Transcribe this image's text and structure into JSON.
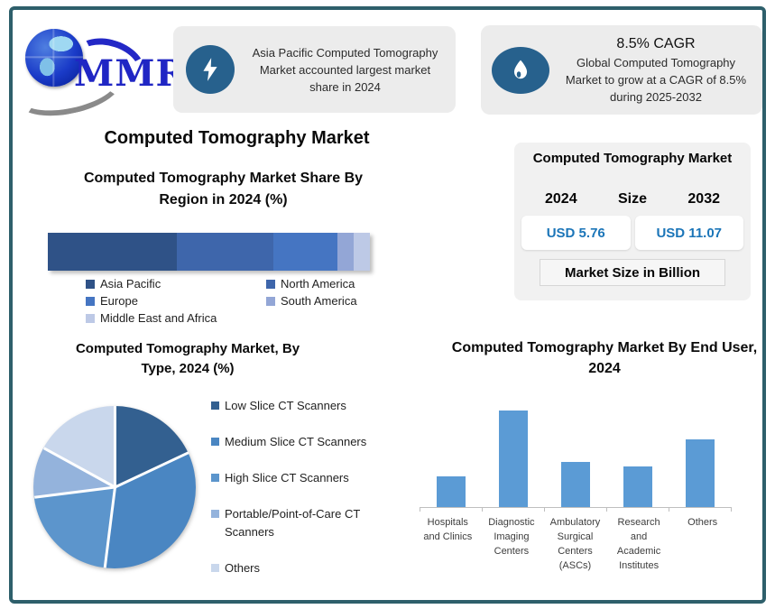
{
  "page": {
    "frame_border_color": "#2E5F6B",
    "background_color": "#FFFFFF"
  },
  "logo": {
    "text": "MMR",
    "globe_icon": "globe-icon"
  },
  "highlight_left": {
    "icon": "lightning-icon",
    "icon_bg_color": "#27618D",
    "text": "Asia Pacific Computed Tomography Market accounted largest market share in 2024"
  },
  "highlight_right": {
    "icon": "flame-icon",
    "icon_bg_color": "#27618D",
    "headline": "8.5% CAGR",
    "text": "Global Computed Tomography Market to grow at a CAGR of 8.5% during 2025-2032"
  },
  "main_title": "Computed Tomography Market",
  "market_size_panel": {
    "title": "Computed Tomography Market",
    "start_year": "2024",
    "middle_label": "Size",
    "end_year": "2032",
    "start_value": "USD 5.76",
    "end_value": "USD 11.07",
    "unit_note": "Market Size in Billion",
    "value_color": "#1B75B8"
  },
  "chart_data": [
    {
      "type": "bar",
      "variant": "stacked-horizontal-single-bar",
      "title": "Computed Tomography Market Share By Region in 2024 (%)",
      "categories": [
        "Asia Pacific",
        "North America",
        "Europe",
        "South America",
        "Middle East and Africa"
      ],
      "values": [
        40,
        30,
        20,
        5,
        5
      ],
      "colors": [
        "#2F5287",
        "#3E66AB",
        "#4575C2",
        "#93A6D6",
        "#BDC9E6"
      ],
      "legend_position": "bottom",
      "grid": false
    },
    {
      "type": "pie",
      "title": "Computed Tomography Market, By Type, 2024 (%)",
      "categories": [
        "Low Slice CT Scanners",
        "Medium Slice CT Scanners",
        "High Slice CT Scanners",
        "Portable/Point-of-Care CT Scanners",
        "Others"
      ],
      "values": [
        18,
        34,
        21,
        10,
        17
      ],
      "colors": [
        "#336090",
        "#4A86C2",
        "#5C95CC",
        "#94B3DC",
        "#C9D7EC"
      ],
      "start_angle_deg": 0,
      "legend_position": "right"
    },
    {
      "type": "bar",
      "title": "Computed Tomography Market By End User, 2024",
      "categories": [
        "Hospitals and Clinics",
        "Diagnostic Imaging Centers",
        "Ambulatory Surgical Centers (ASCs)",
        "Research and Academic Institutes",
        "Others"
      ],
      "category_lines": [
        [
          "Hospitals",
          "and Clinics"
        ],
        [
          "Diagnostic",
          "Imaging",
          "Centers"
        ],
        [
          "Ambulatory",
          "Surgical",
          "Centers",
          "(ASCs)"
        ],
        [
          "Research",
          "and",
          "Academic",
          "Institutes"
        ],
        [
          "Others"
        ]
      ],
      "values": [
        32,
        100,
        47,
        42,
        70
      ],
      "ylim": [
        0,
        110
      ],
      "bar_color": "#5B9BD5",
      "xlabel": "",
      "ylabel": "",
      "grid": false
    }
  ]
}
